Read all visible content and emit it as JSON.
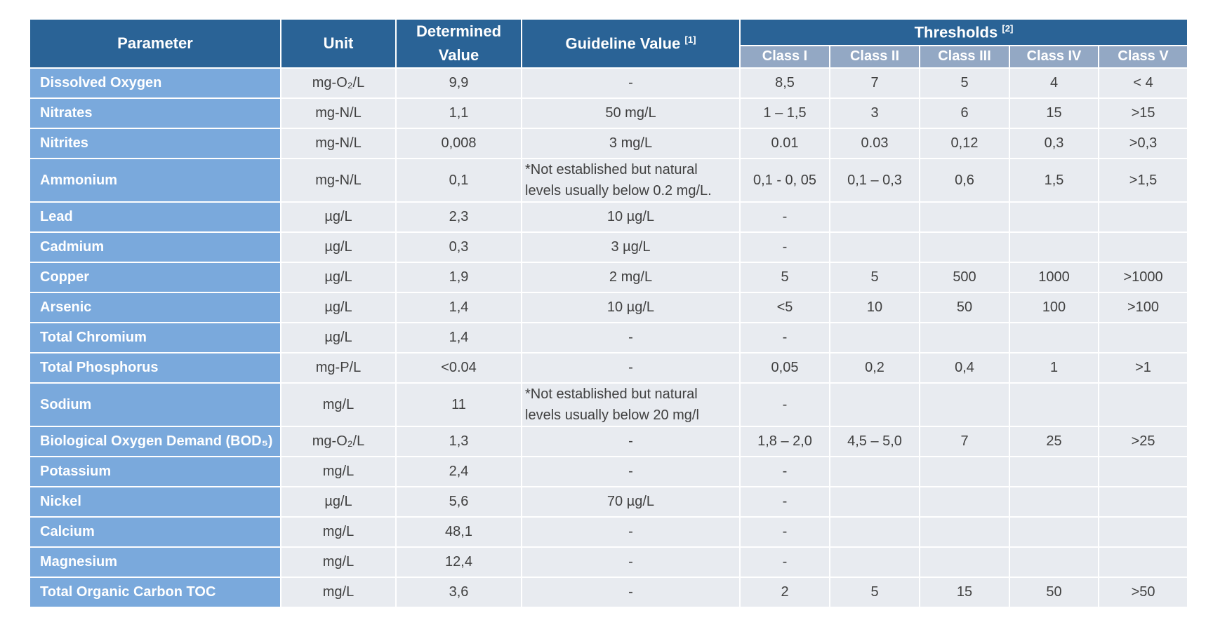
{
  "header": {
    "parameter": "Parameter",
    "unit": "Unit",
    "determined": "Determined Value",
    "guideline": "Guideline Value",
    "guideline_ref": "[1]",
    "thresholds": "Thresholds",
    "thresholds_ref": "[2]",
    "classes": [
      "Class I",
      "Class II",
      "Class III",
      "Class IV",
      "Class V"
    ]
  },
  "rows": [
    {
      "param": "Dissolved Oxygen",
      "unit": "mg-O₂/L",
      "value": "9,9",
      "guide": "-",
      "c1": "8,5",
      "c2": "7",
      "c3": "5",
      "c4": "4",
      "c5": "< 4"
    },
    {
      "param": "Nitrates",
      "unit": "mg-N/L",
      "value": "1,1",
      "guide": "50 mg/L",
      "c1": "1 – 1,5",
      "c2": "3",
      "c3": "6",
      "c4": "15",
      "c5": ">15"
    },
    {
      "param": "Nitrites",
      "unit": "mg-N/L",
      "value": "0,008",
      "guide": "3 mg/L",
      "c1": "0.01",
      "c2": "0.03",
      "c3": "0,12",
      "c4": "0,3",
      "c5": ">0,3"
    },
    {
      "param": "Ammonium",
      "unit": "mg-N/L",
      "value": "0,1",
      "guide": "*Not established but natural levels usually below 0.2 mg/L.",
      "c1": "0,1 - 0, 05",
      "c2": "0,1 – 0,3",
      "c3": "0,6",
      "c4": "1,5",
      "c5": ">1,5"
    },
    {
      "param": "Lead",
      "unit": "µg/L",
      "value": "2,3",
      "guide": "10 µg/L",
      "c1": "-",
      "c2": "",
      "c3": "",
      "c4": "",
      "c5": ""
    },
    {
      "param": "Cadmium",
      "unit": "µg/L",
      "value": "0,3",
      "guide": "3 µg/L",
      "c1": "-",
      "c2": "",
      "c3": "",
      "c4": "",
      "c5": ""
    },
    {
      "param": "Copper",
      "unit": "µg/L",
      "value": "1,9",
      "guide": "2 mg/L",
      "c1": "5",
      "c2": "5",
      "c3": "500",
      "c4": "1000",
      "c5": ">1000"
    },
    {
      "param": "Arsenic",
      "unit": "µg/L",
      "value": "1,4",
      "guide": "10 µg/L",
      "c1": "<5",
      "c2": "10",
      "c3": "50",
      "c4": "100",
      "c5": ">100"
    },
    {
      "param": "Total Chromium",
      "unit": "µg/L",
      "value": "1,4",
      "guide": "-",
      "c1": "-",
      "c2": "",
      "c3": "",
      "c4": "",
      "c5": ""
    },
    {
      "param": "Total Phosphorus",
      "unit": "mg-P/L",
      "value": "<0.04",
      "guide": "-",
      "c1": "0,05",
      "c2": "0,2",
      "c3": "0,4",
      "c4": "1",
      "c5": ">1"
    },
    {
      "param": "Sodium",
      "unit": "mg/L",
      "value": "11",
      "guide": "*Not established but natural levels usually below 20 mg/l",
      "c1": "-",
      "c2": "",
      "c3": "",
      "c4": "",
      "c5": ""
    },
    {
      "param": "Biological Oxygen Demand (BOD₅)",
      "unit": "mg-O₂/L",
      "value": "1,3",
      "guide": "-",
      "c1": "1,8 – 2,0",
      "c2": "4,5 – 5,0",
      "c3": "7",
      "c4": "25",
      "c5": ">25"
    },
    {
      "param": "Potassium",
      "unit": "mg/L",
      "value": "2,4",
      "guide": "-",
      "c1": "-",
      "c2": "",
      "c3": "",
      "c4": "",
      "c5": ""
    },
    {
      "param": "Nickel",
      "unit": "µg/L",
      "value": "5,6",
      "guide": "70 µg/L",
      "c1": "-",
      "c2": "",
      "c3": "",
      "c4": "",
      "c5": ""
    },
    {
      "param": "Calcium",
      "unit": "mg/L",
      "value": "48,1",
      "guide": "-",
      "c1": "-",
      "c2": "",
      "c3": "",
      "c4": "",
      "c5": ""
    },
    {
      "param": "Magnesium",
      "unit": "mg/L",
      "value": "12,4",
      "guide": "-",
      "c1": "-",
      "c2": "",
      "c3": "",
      "c4": "",
      "c5": ""
    },
    {
      "param": "Total Organic Carbon TOC",
      "unit": "mg/L",
      "value": "3,6",
      "guide": "-",
      "c1": "2",
      "c2": "5",
      "c3": "15",
      "c4": "50",
      "c5": ">50"
    }
  ]
}
